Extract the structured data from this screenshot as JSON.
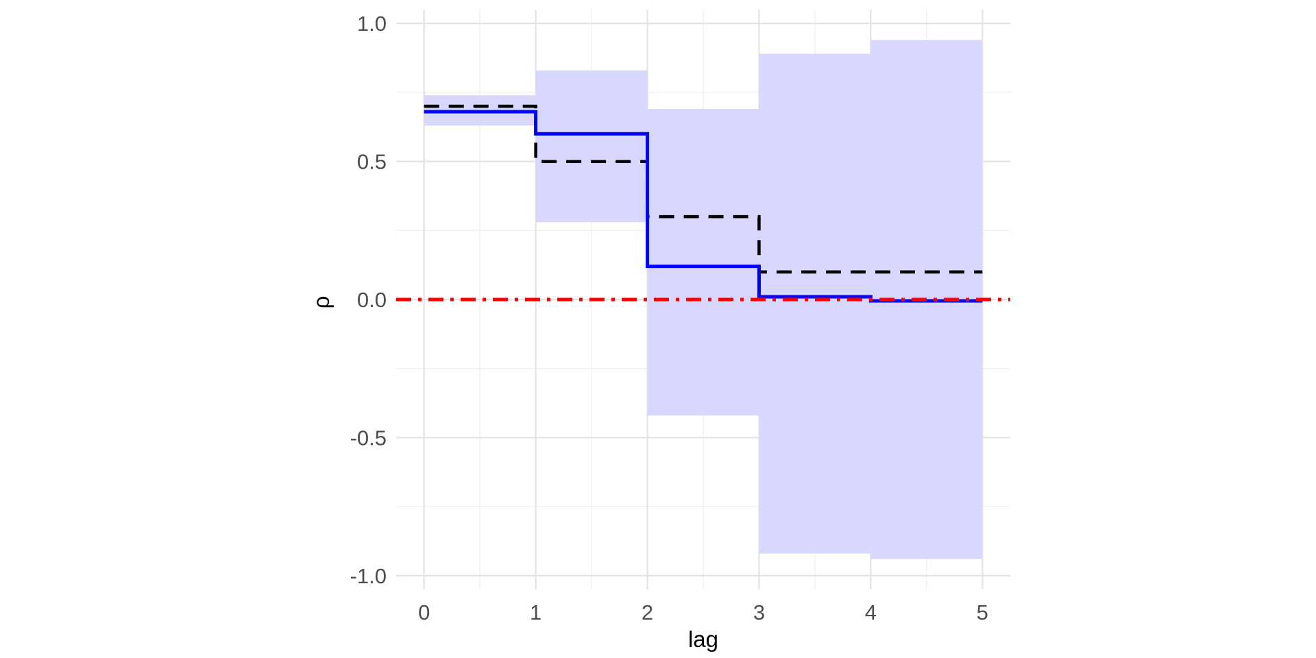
{
  "chart_data": {
    "type": "line",
    "title": "",
    "xlabel": "lag",
    "ylabel": "ρ",
    "xlim": [
      -0.25,
      5.25
    ],
    "ylim": [
      -1.05,
      1.05
    ],
    "x_ticks": [
      0,
      1,
      2,
      3,
      4,
      5
    ],
    "x_tick_labels": [
      "0",
      "1",
      "2",
      "3",
      "4",
      "5"
    ],
    "x_minor_ticks": [
      0.5,
      1.5,
      2.5,
      3.5,
      4.5
    ],
    "y_ticks": [
      -1.0,
      -0.5,
      0.0,
      0.5,
      1.0
    ],
    "y_tick_labels": [
      "-1.0",
      "-0.5",
      "0.0",
      "0.5",
      "1.0"
    ],
    "y_minor_ticks": [
      -0.75,
      -0.25,
      0.25,
      0.75
    ],
    "grid": true,
    "legend": "none",
    "series": [
      {
        "style": "shaded-interval",
        "color": "#d8d8ff",
        "intervals": [
          {
            "x0": 0,
            "x1": 1,
            "lower": 0.63,
            "upper": 0.74
          },
          {
            "x0": 1,
            "x1": 2,
            "lower": 0.28,
            "upper": 0.83
          },
          {
            "x0": 2,
            "x1": 3,
            "lower": -0.42,
            "upper": 0.69
          },
          {
            "x0": 3,
            "x1": 4,
            "lower": -0.92,
            "upper": 0.89
          },
          {
            "x0": 4,
            "x1": 5,
            "lower": -0.94,
            "upper": 0.94
          }
        ]
      },
      {
        "style": "dashed-step",
        "color": "#000000",
        "x": [
          0,
          1,
          2,
          3,
          4,
          5
        ],
        "values": [
          0.7,
          0.5,
          0.3,
          0.1,
          0.1,
          0.1
        ]
      },
      {
        "style": "solid-step",
        "color": "#0000ff",
        "x": [
          0,
          1,
          2,
          3,
          4,
          5
        ],
        "values": [
          0.68,
          0.6,
          0.12,
          0.01,
          -0.005,
          -0.005
        ]
      },
      {
        "style": "dot-dash-reference",
        "color": "#ff0000",
        "x": [
          -0.25,
          5.25
        ],
        "values": [
          0.0,
          0.0
        ]
      }
    ]
  }
}
